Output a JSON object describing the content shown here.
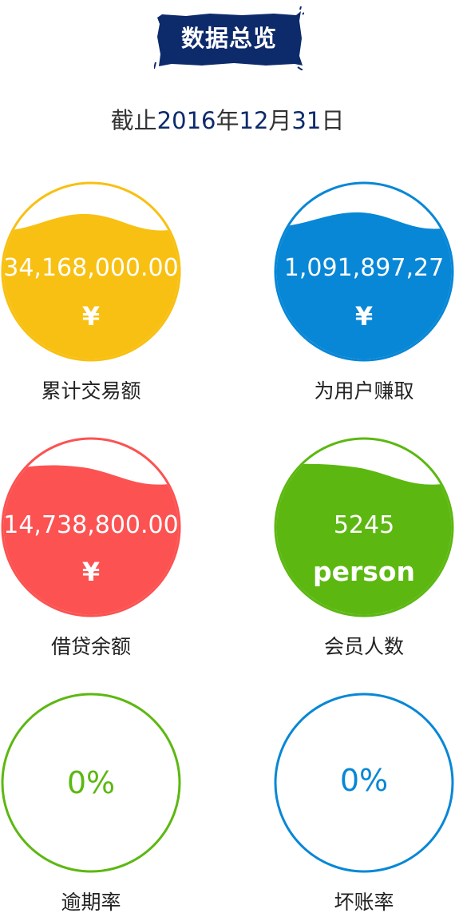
{
  "header": {
    "title": "数据总览",
    "date_prefix": "截止",
    "year": "2016",
    "year_unit": "年",
    "month": "12",
    "month_unit": "月",
    "day": "31",
    "day_unit": "日"
  },
  "stats": [
    {
      "value": "34,168,000.00",
      "unit": "¥",
      "label": "累计交易额",
      "color": "#f8c012"
    },
    {
      "value": "1,091,897,27",
      "unit": "¥",
      "label": "为用户赚取",
      "color": "#0787d6"
    },
    {
      "value": "14,738,800.00",
      "unit": "¥",
      "label": "借贷余额",
      "color": "#fc5252"
    },
    {
      "value": "5245",
      "unit": "person",
      "label": "会员人数",
      "color": "#5cb811"
    }
  ],
  "rates": [
    {
      "value": "0%",
      "label": "逾期率",
      "color": "#5cb811"
    },
    {
      "value": "0%",
      "label": "坏账率",
      "color": "#0787d6"
    }
  ],
  "colors": {
    "badge": "#0d2a6b",
    "date_numbers": "#0d2a6b"
  }
}
